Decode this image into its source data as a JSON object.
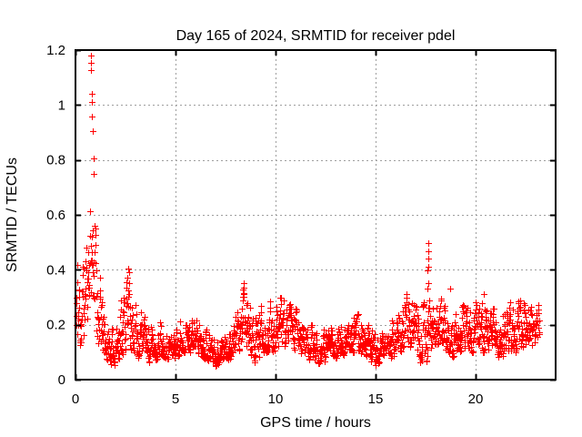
{
  "chart_data": {
    "type": "scatter",
    "title": "Day 165 of 2024, SRMTID for receiver pdel",
    "xlabel": "GPS time / hours",
    "ylabel": "SRMTID / TECUs",
    "xlim": [
      0,
      24
    ],
    "ylim": [
      0,
      1.2
    ],
    "xticks": [
      0,
      5,
      10,
      15,
      20
    ],
    "yticks": [
      0,
      0.2,
      0.4,
      0.6,
      0.8,
      1,
      1.2
    ],
    "grid": {
      "visible": true,
      "style": "dashed",
      "color": "#9e9e9e"
    },
    "legend": "none",
    "series": [
      {
        "name": "SRMTID",
        "marker": "plus",
        "color": "#ff0000",
        "marker_size_px": 7,
        "description": "Dense noisy scatter (~1900 epochs) between hours 0 and 23.2; baseline 0.05-0.3 TECU with spikes near hours 0.8 (to 1.18), 2.6 (to 0.4), 8.4 (to 0.35), 16.6-17 (to 0.33), 17.6 (to 0.5)",
        "data_x_range": [
          0.03,
          23.2
        ],
        "envelope": [
          [
            0.0,
            0.04,
            0.62
          ],
          [
            0.15,
            0.08,
            0.45
          ],
          [
            0.35,
            0.12,
            0.45
          ],
          [
            0.55,
            0.2,
            0.55
          ],
          [
            0.7,
            0.28,
            0.72
          ],
          [
            0.85,
            0.3,
            0.72
          ],
          [
            1.0,
            0.18,
            0.62
          ],
          [
            1.15,
            0.12,
            0.42
          ],
          [
            1.35,
            0.08,
            0.28
          ],
          [
            1.6,
            0.06,
            0.2
          ],
          [
            1.9,
            0.05,
            0.18
          ],
          [
            2.2,
            0.08,
            0.3
          ],
          [
            2.45,
            0.1,
            0.36
          ],
          [
            2.65,
            0.12,
            0.4
          ],
          [
            2.9,
            0.1,
            0.33
          ],
          [
            3.15,
            0.08,
            0.28
          ],
          [
            3.4,
            0.1,
            0.24
          ],
          [
            3.7,
            0.06,
            0.2
          ],
          [
            4.0,
            0.07,
            0.19
          ],
          [
            4.3,
            0.09,
            0.22
          ],
          [
            4.7,
            0.07,
            0.18
          ],
          [
            5.0,
            0.08,
            0.2
          ],
          [
            5.4,
            0.1,
            0.24
          ],
          [
            5.8,
            0.1,
            0.22
          ],
          [
            6.2,
            0.09,
            0.24
          ],
          [
            6.6,
            0.07,
            0.2
          ],
          [
            7.0,
            0.05,
            0.16
          ],
          [
            7.4,
            0.06,
            0.17
          ],
          [
            7.8,
            0.08,
            0.22
          ],
          [
            8.1,
            0.1,
            0.26
          ],
          [
            8.4,
            0.12,
            0.34
          ],
          [
            8.7,
            0.1,
            0.28
          ],
          [
            9.0,
            0.05,
            0.22
          ],
          [
            9.3,
            0.1,
            0.3
          ],
          [
            9.6,
            0.1,
            0.27
          ],
          [
            9.9,
            0.1,
            0.3
          ],
          [
            10.2,
            0.12,
            0.3
          ],
          [
            10.6,
            0.12,
            0.28
          ],
          [
            11.0,
            0.1,
            0.26
          ],
          [
            11.4,
            0.08,
            0.22
          ],
          [
            11.8,
            0.07,
            0.2
          ],
          [
            12.2,
            0.06,
            0.19
          ],
          [
            12.6,
            0.07,
            0.18
          ],
          [
            13.0,
            0.08,
            0.2
          ],
          [
            13.4,
            0.08,
            0.21
          ],
          [
            13.8,
            0.1,
            0.23
          ],
          [
            14.2,
            0.1,
            0.24
          ],
          [
            14.6,
            0.08,
            0.2
          ],
          [
            15.0,
            0.05,
            0.16
          ],
          [
            15.4,
            0.08,
            0.2
          ],
          [
            15.8,
            0.08,
            0.21
          ],
          [
            16.2,
            0.1,
            0.26
          ],
          [
            16.6,
            0.12,
            0.32
          ],
          [
            16.9,
            0.12,
            0.3
          ],
          [
            17.2,
            0.06,
            0.22
          ],
          [
            17.5,
            0.05,
            0.3
          ],
          [
            17.8,
            0.1,
            0.28
          ],
          [
            18.1,
            0.12,
            0.31
          ],
          [
            18.4,
            0.1,
            0.28
          ],
          [
            18.8,
            0.08,
            0.24
          ],
          [
            19.2,
            0.1,
            0.28
          ],
          [
            19.6,
            0.1,
            0.26
          ],
          [
            20.0,
            0.1,
            0.28
          ],
          [
            20.4,
            0.1,
            0.3
          ],
          [
            20.8,
            0.1,
            0.26
          ],
          [
            21.2,
            0.08,
            0.26
          ],
          [
            21.6,
            0.1,
            0.28
          ],
          [
            22.0,
            0.1,
            0.3
          ],
          [
            22.4,
            0.12,
            0.28
          ],
          [
            22.7,
            0.1,
            0.26
          ],
          [
            23.0,
            0.12,
            0.28
          ],
          [
            23.2,
            0.14,
            0.27
          ]
        ],
        "outliers": [
          [
            0.78,
            1.18
          ],
          [
            0.78,
            1.153
          ],
          [
            0.79,
            1.127
          ],
          [
            0.82,
            1.04
          ],
          [
            0.82,
            1.012
          ],
          [
            0.84,
            0.958
          ],
          [
            0.87,
            0.905
          ],
          [
            0.9,
            0.806
          ],
          [
            0.93,
            0.75
          ],
          [
            2.62,
            0.405
          ],
          [
            2.58,
            0.37
          ],
          [
            8.42,
            0.35
          ],
          [
            17.62,
            0.497
          ],
          [
            17.62,
            0.468
          ],
          [
            17.63,
            0.44
          ],
          [
            17.63,
            0.411
          ],
          [
            17.61,
            0.399
          ],
          [
            17.64,
            0.352
          ],
          [
            17.6,
            0.33
          ],
          [
            18.72,
            0.33
          ],
          [
            20.4,
            0.31
          ]
        ]
      }
    ],
    "generation": {
      "seed": 11,
      "step_hours": 0.012,
      "smooth": 0.62,
      "spread": 1.9,
      "bias": 1.35
    }
  },
  "colors": {
    "background": "#ffffff",
    "border": "#000000",
    "text": "#000000",
    "marker": "#ff0000",
    "grid": "#9e9e9e"
  }
}
